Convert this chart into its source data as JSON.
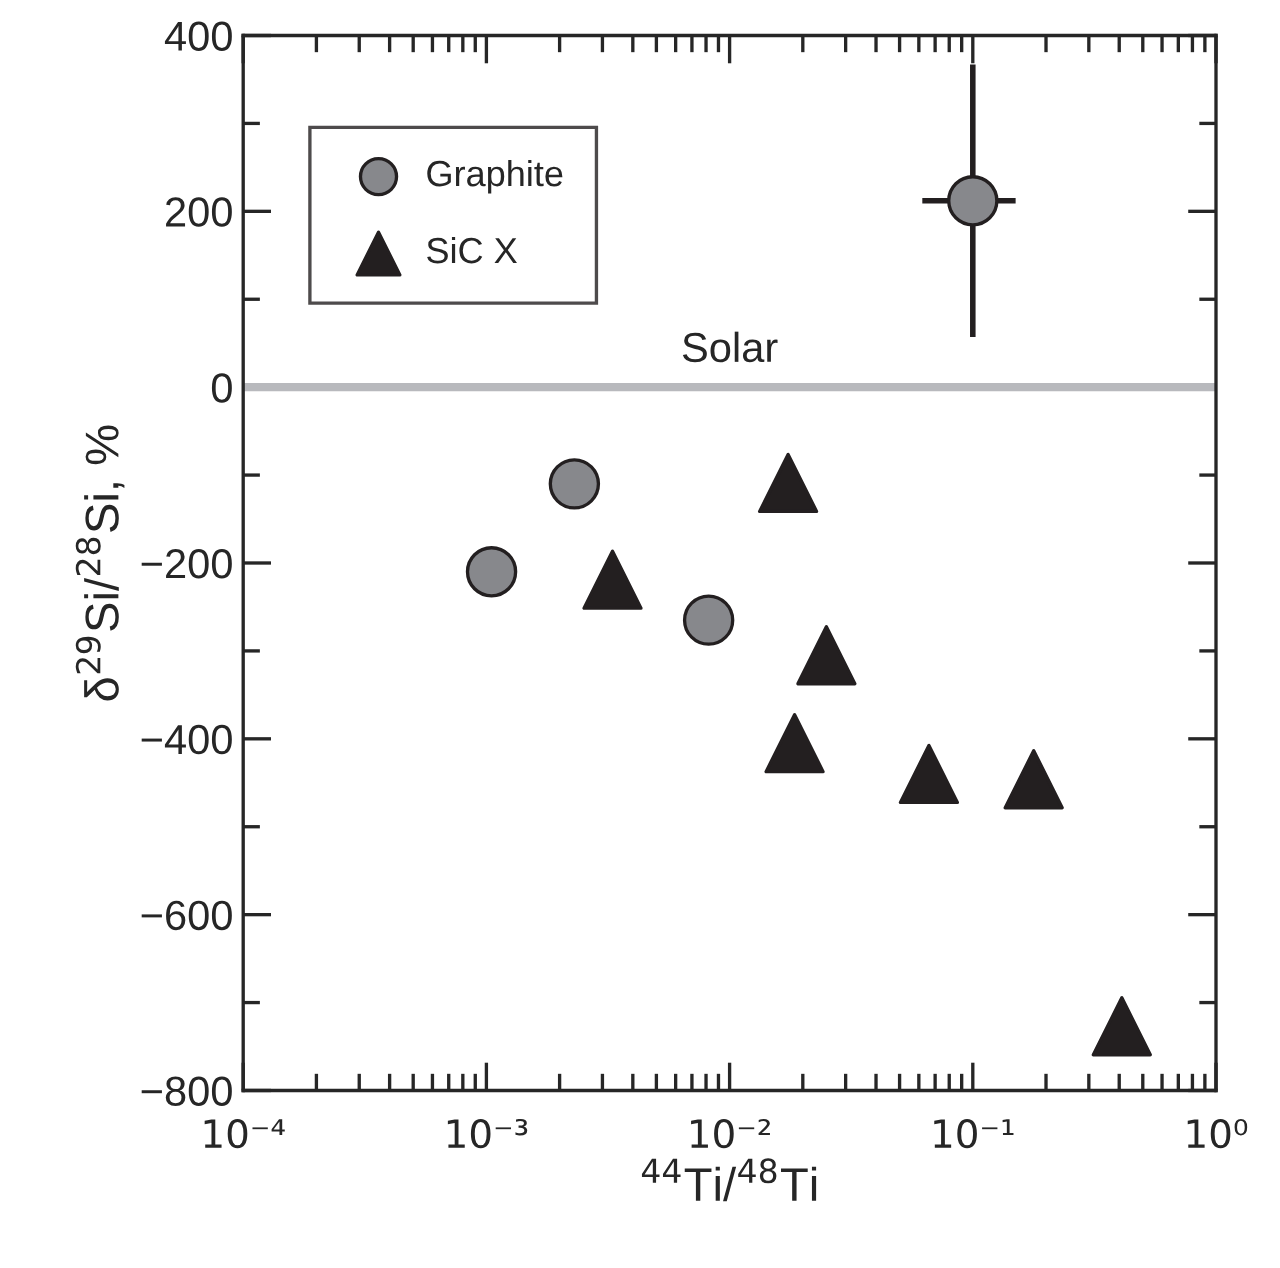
{
  "chart_data": {
    "type": "scatter",
    "xlabel": "$^{44}$Ti/$^{48}$Ti",
    "ylabel": "δ$^{29}$Si/$^{28}$Si, %",
    "log": "x",
    "xlim": [
      0.0001,
      1
    ],
    "xticks": [
      {
        "value": 0.0001,
        "label": "10⁻⁴"
      },
      {
        "value": 0.001,
        "label": "10⁻³"
      },
      {
        "value": 0.01,
        "label": "10⁻²"
      },
      {
        "value": 0.1,
        "label": "10⁻¹"
      },
      {
        "value": 1,
        "label": "10⁰"
      }
    ],
    "ylim": [
      -800,
      400
    ],
    "yticks": [
      -800,
      {
        "value": -700,
        "label": null
      },
      -600,
      {
        "value": -500,
        "label": null
      },
      -400,
      {
        "value": -300,
        "label": null
      },
      -200,
      {
        "value": -100,
        "label": null
      },
      0,
      {
        "value": 100,
        "label": null
      },
      200,
      {
        "value": 300,
        "label": null
      },
      400
    ],
    "legend": "top left",
    "grid": false,
    "ref_lines": [
      {
        "axis": "y",
        "value": 0,
        "label": "Solar",
        "color": "#b8b9bd"
      }
    ],
    "series": [
      {
        "name": "Graphite",
        "color": "#87888c",
        "marker": "circle",
        "x": [
          0.00105,
          0.0023,
          0.0082,
          0.1
        ],
        "values": [
          -210,
          -110,
          -265,
          212
        ],
        "errors": [
          null,
          null,
          null,
          155
        ],
        "xerrors": [
          null,
          null,
          null,
          [
            0.062,
            0.15
          ]
        ]
      },
      {
        "name": "SiC X",
        "color": "#231f20",
        "marker": "triangle",
        "x": [
          0.0174,
          0.0033,
          0.025,
          0.0185,
          0.066,
          0.178,
          0.41
        ],
        "values": [
          -109,
          -219,
          -305,
          -405,
          -440,
          -446,
          -727
        ]
      }
    ]
  }
}
